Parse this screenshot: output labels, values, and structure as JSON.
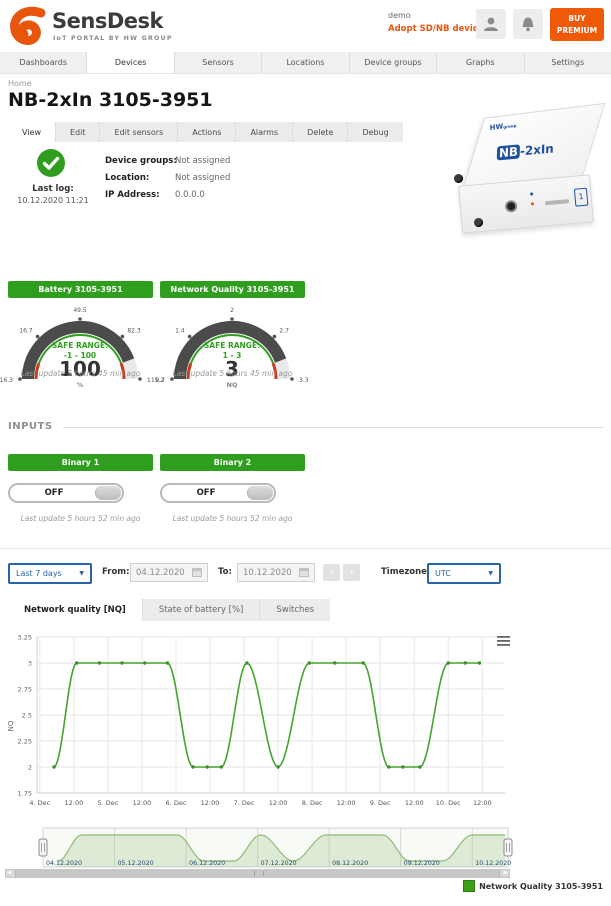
{
  "colors": {
    "accent": "#e8560e",
    "green": "#2f9e1f",
    "blue": "#2a63a8",
    "chart_green": "#47a22f",
    "legend_green": "#3da018"
  },
  "header": {
    "logo_title": "SensDesk",
    "logo_sub": "IoT PORTAL BY HW GROUP",
    "user": "demo",
    "adopt": "Adopt SD/NB device",
    "buy": "BUY PREMIUM"
  },
  "nav": {
    "items": [
      {
        "label": "Dashboards",
        "active": false
      },
      {
        "label": "Devices",
        "active": true
      },
      {
        "label": "Sensors",
        "active": false
      },
      {
        "label": "Locations",
        "active": false
      },
      {
        "label": "Device groups",
        "active": false
      },
      {
        "label": "Graphs",
        "active": false
      },
      {
        "label": "Settings",
        "active": false
      }
    ]
  },
  "breadcrumb": "Home",
  "page": {
    "title": "NB-2xIn 3105-3951"
  },
  "device_tabs": [
    {
      "label": "View",
      "active": true
    },
    {
      "label": "Edit",
      "active": false
    },
    {
      "label": "Edit sensors",
      "active": false
    },
    {
      "label": "Actions",
      "active": false
    },
    {
      "label": "Alarms",
      "active": false
    },
    {
      "label": "Delete",
      "active": false
    },
    {
      "label": "Debug",
      "active": false
    }
  ],
  "status": {
    "last_log_label": "Last log:",
    "last_log_value": "10.12.2020 11:21",
    "info": [
      {
        "label": "Device groups:",
        "value": "Not assigned"
      },
      {
        "label": "Location:",
        "value": "Not assigned"
      },
      {
        "label": "IP Address:",
        "value": "0.0.0.0"
      }
    ]
  },
  "gauges": [
    {
      "title": "Battery 3105-3951",
      "min": -16.3,
      "max": 115.2,
      "value": 100,
      "display": "100",
      "unit": "%",
      "safe_title": "SAFE RANGE:",
      "safe_text": "-1 - 100",
      "safe_min": -1,
      "safe_max": 100,
      "ticks": [
        "-16.3",
        "16.7",
        "49.5",
        "82.3",
        "115.2"
      ],
      "last_update": "Last update 5 hours 45 min ago"
    },
    {
      "title": "Network Quality 3105-3951",
      "min": 0.7,
      "max": 3.3,
      "value": 3,
      "display": "3",
      "unit": "NQ",
      "safe_title": "SAFE RANGE:",
      "safe_text": "1 - 3",
      "safe_min": 1,
      "safe_max": 3,
      "ticks": [
        "0.7",
        "1.4",
        "2",
        "2.7",
        "3.3"
      ],
      "last_update": "Last update 5 hours 45 min ago"
    }
  ],
  "inputs": {
    "heading": "INPUTS",
    "items": [
      {
        "title": "Binary 1",
        "state": "OFF",
        "last_update": "Last update 5 hours 52 min ago"
      },
      {
        "title": "Binary 2",
        "state": "OFF",
        "last_update": "Last update 5 hours 52 min ago"
      }
    ]
  },
  "filter": {
    "range": "Last 7 days",
    "from_label": "From:",
    "from": "04.12.2020",
    "to_label": "To:",
    "to": "10.12.2020",
    "tz_label": "Timezone:",
    "tz": "UTC"
  },
  "chart_tabs": [
    {
      "label": "Network quality [NQ]",
      "active": true
    },
    {
      "label": "State of battery [%]",
      "active": false
    },
    {
      "label": "Switches",
      "active": false
    }
  ],
  "chart_data": {
    "type": "line",
    "title": "",
    "xlabel": "",
    "ylabel": "NQ",
    "ylim": [
      1.75,
      3.25
    ],
    "xlim_hours": [
      -1,
      164
    ],
    "grid": true,
    "legend_position": "bottom-right",
    "y_ticks": [
      1.75,
      2,
      2.25,
      2.5,
      2.75,
      3,
      3.25
    ],
    "x_ticks": [
      {
        "h": 0,
        "label": "4. Dec"
      },
      {
        "h": 12,
        "label": "12:00"
      },
      {
        "h": 24,
        "label": "5. Dec"
      },
      {
        "h": 36,
        "label": "12:00"
      },
      {
        "h": 48,
        "label": "6. Dec"
      },
      {
        "h": 60,
        "label": "12:00"
      },
      {
        "h": 72,
        "label": "7. Dec"
      },
      {
        "h": 84,
        "label": "12:00"
      },
      {
        "h": 96,
        "label": "8. Dec"
      },
      {
        "h": 108,
        "label": "12:00"
      },
      {
        "h": 120,
        "label": "9. Dec"
      },
      {
        "h": 132,
        "label": "12:00"
      },
      {
        "h": 144,
        "label": "10. Dec"
      },
      {
        "h": 156,
        "label": "12:00"
      }
    ],
    "series": [
      {
        "name": "Network Quality 3105-3951",
        "color": "#47a22f",
        "points_hours_value": [
          [
            5,
            2
          ],
          [
            13,
            3
          ],
          [
            21,
            3
          ],
          [
            29,
            3
          ],
          [
            37,
            3
          ],
          [
            45,
            3
          ],
          [
            54,
            2
          ],
          [
            59,
            2
          ],
          [
            64,
            2
          ],
          [
            73,
            3
          ],
          [
            84,
            2
          ],
          [
            95,
            3
          ],
          [
            104,
            3
          ],
          [
            114,
            3
          ],
          [
            123,
            2
          ],
          [
            128,
            2
          ],
          [
            134,
            2
          ],
          [
            144,
            3
          ],
          [
            150,
            3
          ],
          [
            155,
            3
          ]
        ]
      }
    ],
    "navigator": {
      "xlim_hours": [
        0,
        156
      ],
      "dates": [
        {
          "h": 0,
          "label": "04.12.2020"
        },
        {
          "h": 24,
          "label": "05.12.2020"
        },
        {
          "h": 48,
          "label": "06.12.2020"
        },
        {
          "h": 72,
          "label": "07.12.2020"
        },
        {
          "h": 96,
          "label": "08.12.2020"
        },
        {
          "h": 120,
          "label": "09.12.2020"
        },
        {
          "h": 144,
          "label": "10.12.2020"
        }
      ]
    },
    "legend": {
      "label": "Network Quality 3105-3951",
      "color": "#3da018"
    }
  }
}
